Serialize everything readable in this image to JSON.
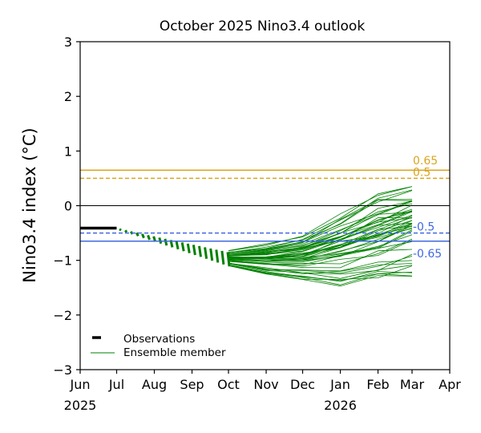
{
  "chart_data": {
    "type": "line",
    "title": "October 2025 Nino3.4 outlook",
    "xlabel": "",
    "ylabel": "Nino3.4 index (°C)",
    "ylim": [
      -3,
      3
    ],
    "yticks": [
      3,
      2,
      1,
      0,
      -1,
      -2,
      -3
    ],
    "ytick_labels": [
      "3",
      "2",
      "1",
      "0",
      "−1",
      "−2",
      "−3"
    ],
    "xlim": [
      "2025-06-01",
      "2026-04-01"
    ],
    "xticks": [
      {
        "date": "2025-06-01",
        "label": "Jun",
        "year_label": "2025"
      },
      {
        "date": "2025-07-01",
        "label": "Jul",
        "year_label": ""
      },
      {
        "date": "2025-08-01",
        "label": "Aug",
        "year_label": ""
      },
      {
        "date": "2025-09-01",
        "label": "Sep",
        "year_label": ""
      },
      {
        "date": "2025-10-01",
        "label": "Oct",
        "year_label": ""
      },
      {
        "date": "2025-11-01",
        "label": "Nov",
        "year_label": ""
      },
      {
        "date": "2025-12-01",
        "label": "Dec",
        "year_label": ""
      },
      {
        "date": "2026-01-01",
        "label": "Jan",
        "year_label": "2026"
      },
      {
        "date": "2026-02-01",
        "label": "Feb",
        "year_label": ""
      },
      {
        "date": "2026-03-01",
        "label": "Mar",
        "year_label": ""
      },
      {
        "date": "2026-04-01",
        "label": "Apr",
        "year_label": ""
      }
    ],
    "grid": false,
    "legend": {
      "placement": "lower-left",
      "entries": [
        {
          "label": "Observations",
          "style": "thick-black-dash",
          "color": "#000000"
        },
        {
          "label": "Ensemble member",
          "style": "thin-line",
          "color": "#008000"
        }
      ]
    },
    "reference_lines": [
      {
        "value": 0.65,
        "label": "0.65",
        "style": "solid",
        "color": "#DAA520"
      },
      {
        "value": 0.5,
        "label": "0.5",
        "style": "dashed",
        "color": "#DAA520"
      },
      {
        "value": 0,
        "label": "",
        "style": "solid-thin",
        "color": "#000000"
      },
      {
        "value": -0.5,
        "label": "-0.5",
        "style": "dashed",
        "color": "#4169E1"
      },
      {
        "value": -0.65,
        "label": "-0.65",
        "style": "solid",
        "color": "#4169E1"
      }
    ],
    "observations": {
      "name": "Observations",
      "color": "#000000",
      "x": [
        "2025-06-01",
        "2025-07-01"
      ],
      "y": [
        -0.41,
        -0.41
      ]
    },
    "hindcast_segment": {
      "name": "Ensemble member (recent months)",
      "color": "#008000",
      "x_start": "2025-07-04",
      "x_end": "2025-10-01",
      "y_start": -0.44,
      "y_end": -0.98,
      "y_spread_end": 0.12
    },
    "ensemble": {
      "name": "Ensemble member",
      "color": "#008000",
      "count": 50,
      "x": [
        "2025-10-01",
        "2025-11-01",
        "2025-12-01",
        "2026-01-01",
        "2026-02-01",
        "2026-03-01"
      ],
      "summary": {
        "min": [
          -1.1,
          -1.25,
          -1.35,
          -1.47,
          -1.35,
          -1.3
        ],
        "mean": [
          -0.95,
          -0.95,
          -0.9,
          -0.72,
          -0.5,
          -0.28
        ],
        "max": [
          -0.82,
          -0.7,
          -0.55,
          -0.15,
          0.27,
          0.35
        ]
      }
    }
  }
}
